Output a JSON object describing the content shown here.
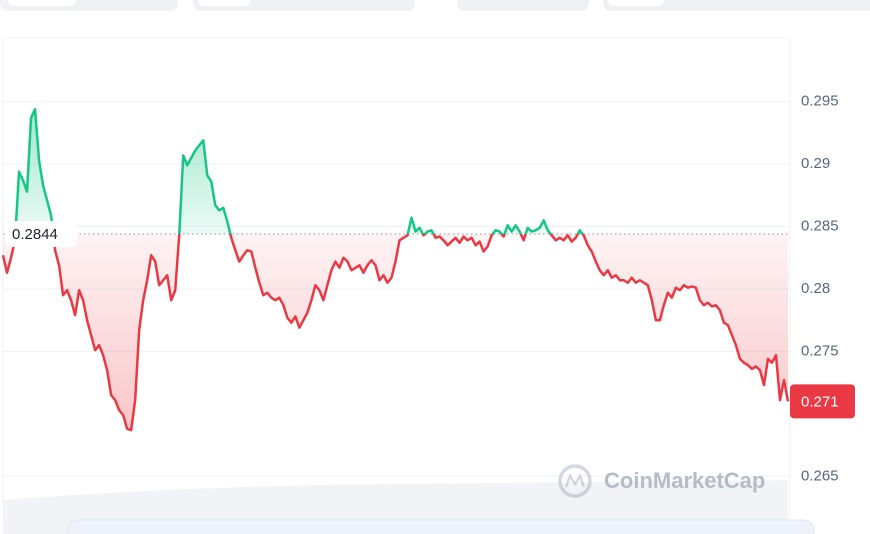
{
  "chart_data": {
    "type": "line",
    "values": [
      0.2827,
      0.2813,
      0.2825,
      0.2839,
      0.2894,
      0.2887,
      0.2878,
      0.2937,
      0.2944,
      0.2903,
      0.2883,
      0.2871,
      0.2859,
      0.2831,
      0.2819,
      0.2795,
      0.2799,
      0.2791,
      0.2779,
      0.2799,
      0.2791,
      0.2775,
      0.2763,
      0.2751,
      0.2755,
      0.2747,
      0.2735,
      0.2715,
      0.2711,
      0.2703,
      0.2699,
      0.2688,
      0.2687,
      0.2711,
      0.2767,
      0.2791,
      0.2807,
      0.2827,
      0.2822,
      0.2803,
      0.2807,
      0.2811,
      0.2791,
      0.2799,
      0.2843,
      0.2907,
      0.2899,
      0.2905,
      0.2911,
      0.2915,
      0.2919,
      0.2891,
      0.2886,
      0.2867,
      0.2863,
      0.2865,
      0.2854,
      0.2841,
      0.2831,
      0.2822,
      0.2827,
      0.2831,
      0.283,
      0.2817,
      0.2805,
      0.2795,
      0.2797,
      0.2793,
      0.2791,
      0.2793,
      0.2787,
      0.2777,
      0.2773,
      0.2778,
      0.2769,
      0.2775,
      0.2781,
      0.2791,
      0.2803,
      0.2799,
      0.2791,
      0.2803,
      0.2815,
      0.2822,
      0.2817,
      0.2825,
      0.2822,
      0.2815,
      0.2817,
      0.2819,
      0.2813,
      0.2819,
      0.2823,
      0.2819,
      0.2807,
      0.2811,
      0.2805,
      0.2809,
      0.2822,
      0.2839,
      0.2841,
      0.2843,
      0.2857,
      0.2846,
      0.2849,
      0.2843,
      0.2846,
      0.2847,
      0.2841,
      0.2842,
      0.2839,
      0.2835,
      0.2838,
      0.2841,
      0.2837,
      0.2842,
      0.2839,
      0.2841,
      0.2835,
      0.2838,
      0.283,
      0.2834,
      0.2843,
      0.2847,
      0.2846,
      0.2842,
      0.2851,
      0.2846,
      0.2851,
      0.2846,
      0.2839,
      0.2849,
      0.2846,
      0.2847,
      0.2849,
      0.2855,
      0.2847,
      0.2843,
      0.2839,
      0.2841,
      0.2839,
      0.2843,
      0.2838,
      0.2841,
      0.2847,
      0.2843,
      0.2835,
      0.283,
      0.2822,
      0.2815,
      0.2811,
      0.2815,
      0.2809,
      0.2811,
      0.2807,
      0.2807,
      0.2805,
      0.2809,
      0.2805,
      0.2807,
      0.2805,
      0.2803,
      0.2791,
      0.2775,
      0.2775,
      0.2787,
      0.2797,
      0.2793,
      0.2801,
      0.2799,
      0.2803,
      0.2801,
      0.2802,
      0.2801,
      0.2791,
      0.2787,
      0.2789,
      0.2786,
      0.2787,
      0.2783,
      0.2773,
      0.2771,
      0.2763,
      0.2755,
      0.2744,
      0.2741,
      0.2739,
      0.2736,
      0.2738,
      0.2735,
      0.2723,
      0.2744,
      0.2741,
      0.2747,
      0.2711,
      0.2727,
      0.271
    ],
    "reference_price": 0.2844,
    "last_price": 0.271,
    "up_color": "#16c784",
    "down_color": "#ea3943",
    "ylim": [
      0.2615,
      0.3001
    ],
    "yticks": [
      0.265,
      0.275,
      0.28,
      0.285,
      0.29,
      0.295
    ],
    "grid": true,
    "watermark": "CoinMarketCap"
  }
}
